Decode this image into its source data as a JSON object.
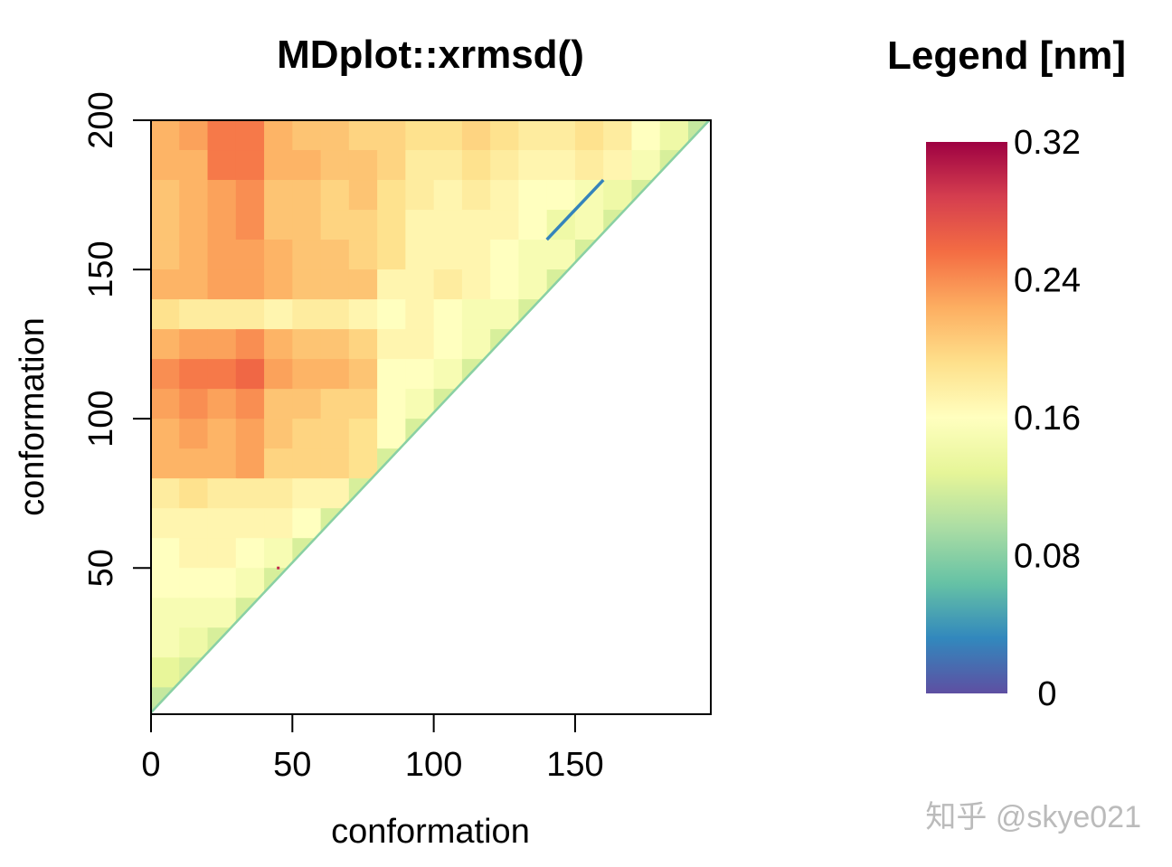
{
  "chart_data": {
    "type": "heatmap",
    "title": "MDplot::xrmsd()",
    "xlabel": "conformation",
    "ylabel": "conformation",
    "xlim": [
      0,
      198
    ],
    "ylim": [
      1,
      200
    ],
    "x_ticks": [
      "0",
      "50",
      "100",
      "150"
    ],
    "x_tick_values": [
      0,
      50,
      100,
      150
    ],
    "y_ticks": [
      "50",
      "100",
      "150",
      "200"
    ],
    "y_tick_values": [
      50,
      100,
      150,
      200
    ],
    "bin_size": 10,
    "note_rows": "rows listed from y bin 190-200 down to 0-10; columns from x bin 0-10 upward; null = empty",
    "values": [
      [
        0.22,
        0.23,
        0.25,
        0.25,
        0.22,
        0.21,
        0.21,
        0.2,
        0.2,
        0.19,
        0.19,
        0.2,
        0.19,
        0.18,
        0.18,
        0.19,
        0.18,
        0.16,
        0.14,
        0.11
      ],
      [
        0.22,
        0.22,
        0.25,
        0.25,
        0.22,
        0.22,
        0.21,
        0.21,
        0.2,
        0.18,
        0.18,
        0.19,
        0.18,
        0.17,
        0.17,
        0.18,
        0.17,
        0.15,
        0.12,
        null
      ],
      [
        0.21,
        0.22,
        0.23,
        0.24,
        0.21,
        0.21,
        0.2,
        0.21,
        0.19,
        0.18,
        0.17,
        0.18,
        0.17,
        0.16,
        0.16,
        0.15,
        0.14,
        0.12,
        null,
        null
      ],
      [
        0.21,
        0.22,
        0.23,
        0.24,
        0.21,
        0.21,
        0.2,
        0.2,
        0.19,
        0.17,
        0.17,
        0.17,
        0.17,
        0.16,
        0.14,
        0.15,
        0.12,
        null,
        null,
        null
      ],
      [
        0.21,
        0.22,
        0.23,
        0.23,
        0.22,
        0.21,
        0.21,
        0.2,
        0.19,
        0.17,
        0.17,
        0.17,
        0.16,
        0.15,
        0.15,
        0.12,
        null,
        null,
        null,
        null
      ],
      [
        0.22,
        0.22,
        0.23,
        0.23,
        0.22,
        0.21,
        0.21,
        0.21,
        0.17,
        0.17,
        0.18,
        0.17,
        0.16,
        0.15,
        0.12,
        null,
        null,
        null,
        null,
        null
      ],
      [
        0.19,
        0.18,
        0.18,
        0.18,
        0.17,
        0.18,
        0.18,
        0.17,
        0.16,
        0.17,
        0.16,
        0.15,
        0.15,
        0.12,
        null,
        null,
        null,
        null,
        null,
        null
      ],
      [
        0.22,
        0.23,
        0.23,
        0.24,
        0.22,
        0.21,
        0.21,
        0.2,
        0.17,
        0.17,
        0.16,
        0.15,
        0.12,
        null,
        null,
        null,
        null,
        null,
        null,
        null
      ],
      [
        0.24,
        0.25,
        0.25,
        0.26,
        0.23,
        0.22,
        0.22,
        0.21,
        0.16,
        0.16,
        0.15,
        0.12,
        null,
        null,
        null,
        null,
        null,
        null,
        null,
        null
      ],
      [
        0.23,
        0.24,
        0.23,
        0.24,
        0.21,
        0.21,
        0.2,
        0.2,
        0.16,
        0.15,
        0.12,
        null,
        null,
        null,
        null,
        null,
        null,
        null,
        null,
        null
      ],
      [
        0.22,
        0.23,
        0.22,
        0.23,
        0.21,
        0.2,
        0.2,
        0.19,
        0.16,
        0.12,
        null,
        null,
        null,
        null,
        null,
        null,
        null,
        null,
        null,
        null
      ],
      [
        0.22,
        0.22,
        0.22,
        0.23,
        0.2,
        0.2,
        0.2,
        0.19,
        0.12,
        null,
        null,
        null,
        null,
        null,
        null,
        null,
        null,
        null,
        null,
        null
      ],
      [
        0.18,
        0.19,
        0.18,
        0.18,
        0.18,
        0.17,
        0.17,
        0.12,
        null,
        null,
        null,
        null,
        null,
        null,
        null,
        null,
        null,
        null,
        null,
        null
      ],
      [
        0.17,
        0.17,
        0.17,
        0.17,
        0.17,
        0.16,
        0.12,
        null,
        null,
        null,
        null,
        null,
        null,
        null,
        null,
        null,
        null,
        null,
        null,
        null
      ],
      [
        0.16,
        0.17,
        0.17,
        0.16,
        0.15,
        0.12,
        null,
        null,
        null,
        null,
        null,
        null,
        null,
        null,
        null,
        null,
        null,
        null,
        null,
        null
      ],
      [
        0.16,
        0.16,
        0.16,
        0.15,
        0.12,
        null,
        null,
        null,
        null,
        null,
        null,
        null,
        null,
        null,
        null,
        null,
        null,
        null,
        null,
        null
      ],
      [
        0.15,
        0.15,
        0.15,
        0.12,
        null,
        null,
        null,
        null,
        null,
        null,
        null,
        null,
        null,
        null,
        null,
        null,
        null,
        null,
        null,
        null
      ],
      [
        0.15,
        0.14,
        0.12,
        null,
        null,
        null,
        null,
        null,
        null,
        null,
        null,
        null,
        null,
        null,
        null,
        null,
        null,
        null,
        null,
        null
      ],
      [
        0.13,
        0.12,
        null,
        null,
        null,
        null,
        null,
        null,
        null,
        null,
        null,
        null,
        null,
        null,
        null,
        null,
        null,
        null,
        null,
        null
      ],
      [
        0.11,
        null,
        null,
        null,
        null,
        null,
        null,
        null,
        null,
        null,
        null,
        null,
        null,
        null,
        null,
        null,
        null,
        null,
        null,
        null
      ]
    ],
    "diagonal_value": 0.08,
    "annotations": [
      {
        "type": "line",
        "from": [
          140,
          160
        ],
        "to": [
          160,
          180
        ],
        "value": 0.03
      },
      {
        "type": "point",
        "at": [
          45,
          50
        ],
        "value": 0.3
      }
    ],
    "legend": {
      "title": "Legend [nm]",
      "placement": "right",
      "range": [
        0,
        0.32
      ],
      "tick_labels": [
        "0.32",
        "0.24",
        "0.16",
        "0.08",
        "0"
      ],
      "tick_values": [
        0.32,
        0.24,
        0.16,
        0.08,
        0
      ],
      "palette": [
        "#5E4FA2",
        "#3288BD",
        "#66C2A5",
        "#ABDDA4",
        "#E6F598",
        "#FFFFBF",
        "#FEE08B",
        "#FDAE61",
        "#F46D43",
        "#D53E4F",
        "#9E0142"
      ]
    }
  },
  "watermark": "知乎 @skye021"
}
